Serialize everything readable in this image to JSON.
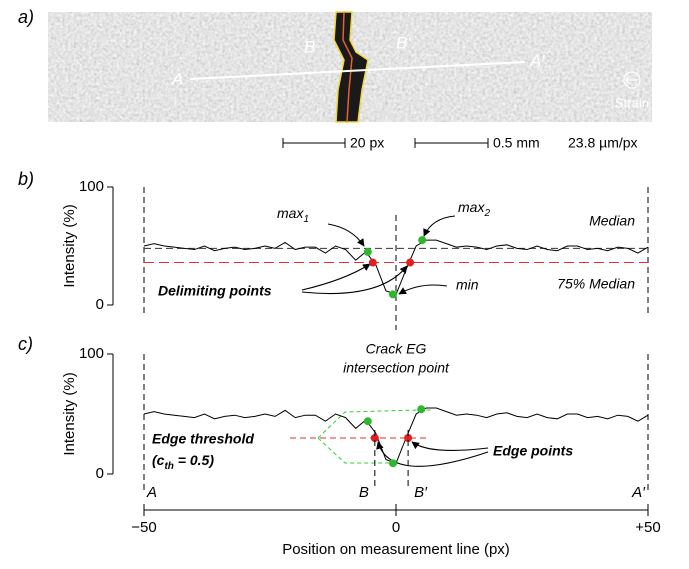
{
  "panel_labels": [
    "a)",
    "b)",
    "c)"
  ],
  "image": {
    "A": "A",
    "A_prime": "A′",
    "B": "B",
    "B_prime": "B′",
    "strain": "Strain",
    "scale_px": "20 px",
    "scale_mm": "0.5 mm",
    "resolution": "23.8 µm/px"
  },
  "chart_data": [
    {
      "type": "line",
      "ylabel": "Intensity (%)",
      "xlim": [
        -50,
        50
      ],
      "ylim": [
        0,
        100
      ],
      "yticks": [
        0,
        100
      ],
      "color": "#000000",
      "x": [
        -50,
        -48,
        -46,
        -44,
        -42,
        -40,
        -38,
        -36,
        -34,
        -32,
        -30,
        -28,
        -26,
        -24,
        -22,
        -20,
        -18,
        -16,
        -14,
        -12,
        -10,
        -8,
        -6,
        -4,
        -2,
        0,
        2,
        4,
        6,
        8,
        10,
        12,
        14,
        16,
        18,
        20,
        22,
        24,
        26,
        28,
        30,
        32,
        34,
        36,
        38,
        40,
        42,
        44,
        46,
        48,
        50
      ],
      "values": [
        50,
        52,
        50,
        49,
        48,
        47,
        50,
        46,
        48,
        49,
        47,
        48,
        50,
        48,
        53,
        47,
        49,
        49,
        44,
        50,
        47,
        38,
        45,
        34,
        12,
        9,
        30,
        50,
        55,
        55,
        52,
        49,
        50,
        49,
        47,
        50,
        51,
        48,
        47,
        50,
        47,
        46,
        50,
        50,
        47,
        48,
        46,
        49,
        48,
        44,
        49
      ],
      "median": {
        "label": "Median",
        "value": 48,
        "color": "#333333"
      },
      "median75": {
        "label": "75% Median",
        "value": 36,
        "color": "#e03030"
      },
      "points": [
        {
          "x": -5.6,
          "y": 45,
          "color": "#2db82d"
        },
        {
          "x": -4.6,
          "y": 36,
          "color": "#e02020"
        },
        {
          "x": -0.6,
          "y": 9,
          "color": "#2db82d"
        },
        {
          "x": 2.8,
          "y": 36,
          "color": "#e02020"
        },
        {
          "x": 5.2,
          "y": 55,
          "color": "#2db82d"
        }
      ],
      "annotations": {
        "max1": {
          "text": "max",
          "sub": "1"
        },
        "max2": {
          "text": "max",
          "sub": "2"
        },
        "delimiting": "Delimiting points",
        "min": "min"
      }
    },
    {
      "type": "line",
      "ylabel": "Intensity (%)",
      "xlabel": "Position on measurement line (px)",
      "xlim": [
        -50,
        50
      ],
      "ylim": [
        0,
        100
      ],
      "yticks": [
        0,
        100
      ],
      "xticks": [
        {
          "value": -50,
          "label": "−50"
        },
        0,
        {
          "value": 50,
          "label": "+50"
        }
      ],
      "color": "#000000",
      "x": [
        -50,
        -48,
        -46,
        -44,
        -42,
        -40,
        -38,
        -36,
        -34,
        -32,
        -30,
        -28,
        -26,
        -24,
        -22,
        -20,
        -18,
        -16,
        -14,
        -12,
        -10,
        -8,
        -6,
        -4,
        -2,
        0,
        2,
        4,
        6,
        8,
        10,
        12,
        14,
        16,
        18,
        20,
        22,
        24,
        26,
        28,
        30,
        32,
        34,
        36,
        38,
        40,
        42,
        44,
        46,
        48,
        50
      ],
      "values": [
        50,
        52,
        50,
        49,
        48,
        47,
        50,
        46,
        48,
        49,
        47,
        48,
        50,
        48,
        53,
        47,
        49,
        49,
        44,
        50,
        47,
        38,
        45,
        34,
        12,
        9,
        30,
        50,
        55,
        55,
        52,
        49,
        50,
        49,
        47,
        50,
        51,
        48,
        47,
        50,
        47,
        46,
        50,
        50,
        47,
        48,
        46,
        49,
        48,
        44,
        49
      ],
      "threshold": {
        "value": 30,
        "color": "#e03030"
      },
      "points": [
        {
          "x": -5.6,
          "y": 44,
          "color": "#2db82d"
        },
        {
          "x": -4.2,
          "y": 30,
          "color": "#e02020"
        },
        {
          "x": -0.6,
          "y": 9,
          "color": "#2db82d"
        },
        {
          "x": 2.4,
          "y": 30,
          "color": "#e02020"
        },
        {
          "x": 5.0,
          "y": 54,
          "color": "#2db82d"
        }
      ],
      "markers": [
        {
          "label": "A",
          "x": -50
        },
        {
          "label": "B",
          "x": -4.2
        },
        {
          "label": "B′",
          "x": 2.4
        },
        {
          "label": "A′",
          "x": 50
        }
      ],
      "annotations": {
        "crack1": "Crack EG",
        "crack2": "intersection point",
        "edge_threshold": "Edge threshold",
        "cth": {
          "pre": "(c",
          "sub": "th",
          "post": " = 0.5)"
        },
        "edge_points": "Edge points"
      }
    }
  ]
}
